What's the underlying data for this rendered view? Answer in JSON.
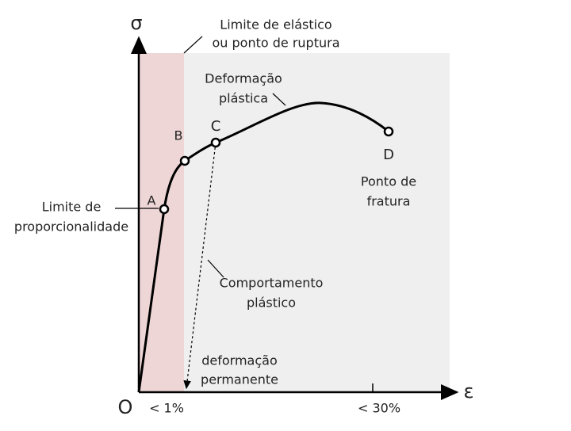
{
  "axes": {
    "y_label": "σ",
    "x_label": "ε",
    "origin": "O",
    "x_markers": [
      "< 1%",
      "< 30%"
    ]
  },
  "points": [
    {
      "label": "A"
    },
    {
      "label": "B"
    },
    {
      "label": "C"
    },
    {
      "label": "D"
    }
  ],
  "annotations": {
    "elastic_limit": [
      "Limite de elástico",
      "ou ponto de ruptura"
    ],
    "plastic_deformation": [
      "Deformação",
      "plástica"
    ],
    "fracture_point": [
      "Ponto de",
      "fratura"
    ],
    "proportionality_limit": [
      "Limite de",
      "proporcionalidade"
    ],
    "plastic_behavior": [
      "Comportamento",
      "plástico"
    ],
    "permanent_deformation": [
      "deformação",
      "permanente"
    ]
  }
}
